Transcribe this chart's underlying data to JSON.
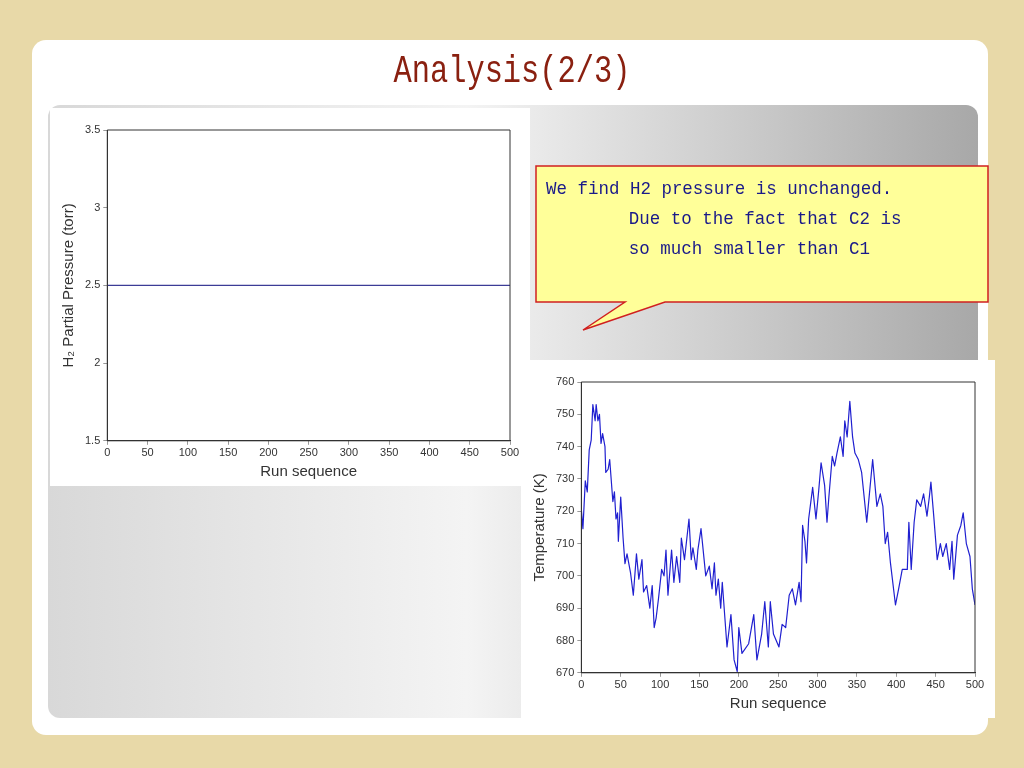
{
  "chart_data": [
    {
      "type": "line",
      "title": "Analysis(2/3)",
      "xlabel": "Run sequence",
      "ylabel": "H₂ Partial Pressure (torr)",
      "annotations": [
        "We find H2 pressure is unchanged.\nDue to the fact that C2 is\nso much smaller than C1"
      ],
      "series": [
        {
          "color": "#3c3c96",
          "x": [
            0,
            500
          ],
          "values": [
            2.5,
            2.5
          ]
        }
      ],
      "xlim": [
        0,
        500
      ],
      "ylim": [
        1.5,
        3.5
      ],
      "xticks": [
        0,
        50,
        100,
        150,
        200,
        250,
        300,
        350,
        400,
        450,
        500
      ],
      "yticks": [
        1.5,
        2,
        2.5,
        3,
        3.5
      ],
      "marker": "none",
      "line_style": "solid"
    },
    {
      "type": "line",
      "xlabel": "Run sequence",
      "ylabel": "Temperature (K)",
      "series": [
        {
          "color": "#2020d0",
          "x": [
            0,
            2,
            5,
            7.5,
            10,
            12.5,
            14.6,
            17.5,
            18.8,
            21,
            23,
            25,
            27,
            30,
            31,
            34,
            36,
            40,
            42,
            44,
            46,
            47,
            50,
            53,
            55.4,
            58,
            62.5,
            66,
            70,
            73,
            77,
            79,
            83,
            87,
            90,
            92.5,
            95,
            98,
            102,
            105,
            107.5,
            110,
            114.6,
            117.5,
            121,
            125,
            127,
            131,
            136.7,
            139.6,
            141.7,
            146,
            148,
            152,
            158,
            162.5,
            166,
            169,
            171,
            174,
            177,
            179,
            185,
            190,
            194,
            198,
            200,
            204,
            212.5,
            219,
            223,
            229,
            233,
            237.5,
            240,
            244,
            251,
            255,
            259.5,
            264,
            268,
            272,
            276.6,
            279,
            281,
            284,
            286,
            288.7,
            293.8,
            298,
            301.5,
            304.5,
            309,
            312,
            314.4,
            318.7,
            321.7,
            324.7,
            329,
            332.5,
            334.6,
            337.6,
            341,
            344.5,
            347.5,
            351.8,
            356,
            362.5,
            370,
            375.4,
            379.7,
            383,
            386,
            389,
            392.6,
            399,
            403,
            407.6,
            414,
            416,
            419,
            422.7,
            426,
            431,
            434.7,
            439,
            442,
            444,
            447.6,
            452,
            456,
            459,
            463.5,
            467.8,
            470.8,
            473,
            477.7,
            482,
            485,
            489,
            493.6,
            496.6,
            500
          ],
          "values": [
            720.5,
            714.6,
            729.4,
            726,
            739,
            742,
            753,
            748,
            753,
            748,
            750,
            741,
            744,
            740,
            732,
            733,
            736,
            723,
            726,
            717.6,
            719.5,
            710.7,
            724.4,
            711.7,
            703.8,
            706.8,
            700.9,
            694,
            706.8,
            699,
            705,
            695,
            697,
            690,
            697,
            684,
            687,
            693,
            702,
            700,
            708,
            694,
            708,
            698,
            706,
            698,
            711.7,
            705,
            717.6,
            705,
            708.7,
            702,
            708,
            714.6,
            700,
            703,
            696,
            704,
            694,
            699,
            690,
            698,
            678,
            688,
            674,
            670.4,
            684,
            676,
            679,
            688,
            674,
            682,
            692,
            678,
            692,
            682,
            678,
            685,
            684,
            694,
            696,
            691,
            698,
            692,
            715.6,
            710.7,
            704,
            717.6,
            727.4,
            717.6,
            726.4,
            735,
            728,
            716.6,
            724.4,
            737,
            734,
            738,
            743,
            737,
            748,
            743,
            754,
            743,
            738,
            736,
            732,
            716.6,
            736,
            721.5,
            725.4,
            721.5,
            710,
            713.5,
            704,
            691,
            696,
            702,
            702,
            716.6,
            702,
            716.6,
            723.5,
            721.5,
            725.4,
            718.5,
            724.4,
            729,
            718.5,
            705,
            710,
            706,
            710,
            702,
            710.7,
            699,
            712.6,
            715.6,
            719.5,
            710,
            706,
            696,
            691
          ]
        }
      ],
      "xlim": [
        0,
        500
      ],
      "ylim": [
        670,
        760
      ],
      "xticks": [
        0,
        50,
        100,
        150,
        200,
        250,
        300,
        350,
        400,
        450,
        500
      ],
      "yticks": [
        670,
        680,
        690,
        700,
        710,
        720,
        730,
        740,
        750,
        760
      ],
      "marker": "none",
      "line_style": "solid"
    }
  ]
}
